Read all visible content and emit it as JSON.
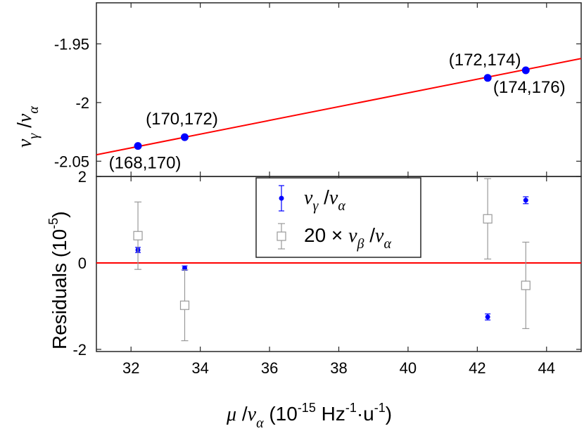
{
  "chart_data": [
    {
      "type": "scatter",
      "panel": "top",
      "xlim": [
        31,
        45
      ],
      "ylim": [
        -2.063,
        -1.915
      ],
      "yticks": [
        "-1.95",
        "-2",
        "-2.05"
      ],
      "ylabel": {
        "main": "ν",
        "sub1": "γ",
        "sep": " /",
        "main2": "ν",
        "sub2": "α"
      },
      "grid": false,
      "fit_line": {
        "color": "#ff0000",
        "x": [
          31,
          45
        ],
        "y": [
          -2.0445,
          -1.9625
        ]
      },
      "points": [
        {
          "x": 32.2,
          "y": -2.037,
          "label": "(168,170)",
          "label_pos": "below"
        },
        {
          "x": 33.55,
          "y": -2.0295,
          "label": "(170,172)",
          "label_pos": "above"
        },
        {
          "x": 42.3,
          "y": -1.979,
          "label": "(172,174)",
          "label_pos": "above"
        },
        {
          "x": 43.4,
          "y": -1.9725,
          "label": "(174,176)",
          "label_pos": "below"
        }
      ],
      "point_color": "#0000ff"
    },
    {
      "type": "scatter",
      "panel": "bottom",
      "xlim": [
        31,
        45
      ],
      "ylim": [
        -2.05,
        2.0
      ],
      "xticks": [
        "32",
        "34",
        "36",
        "38",
        "40",
        "42",
        "44"
      ],
      "yticks": [
        "2",
        "0",
        "-2"
      ],
      "xlabel": {
        "main": "μ",
        "sep": " /",
        "main2": "ν",
        "sub2": "α",
        "units": " (10",
        "exp1": "-15",
        "mid": " Hz",
        "exp2": "-1",
        "dot": "·u",
        "exp3": "-1",
        "close": ")"
      },
      "ylabel": {
        "text": "Residuals (10",
        "exp": "-5",
        "close": ")"
      },
      "zero_line": {
        "color": "#ff0000",
        "y": 0
      },
      "grid": false,
      "legend": {
        "placement": "top-center",
        "entries": [
          {
            "name_main": "ν",
            "name_sub1": "γ",
            "name_sep": " /",
            "name_main2": "ν",
            "name_sub2": "α",
            "color": "#0000ff",
            "marker": "dot"
          },
          {
            "name_prefix": "20 × ",
            "name_main": "ν",
            "name_sub1": "β",
            "name_sep": " /",
            "name_main2": "ν",
            "name_sub2": "α",
            "color": "#999999",
            "marker": "square"
          }
        ]
      },
      "series": [
        {
          "name": "ν_γ/ν_α",
          "color": "#0000ff",
          "marker": "dot",
          "points": [
            {
              "x": 32.2,
              "y": 0.3,
              "err": 0.06
            },
            {
              "x": 33.55,
              "y": -0.12,
              "err": 0.05
            },
            {
              "x": 42.3,
              "y": -1.25,
              "err": 0.07
            },
            {
              "x": 43.4,
              "y": 1.45,
              "err": 0.08
            }
          ]
        },
        {
          "name": "20 × ν_β/ν_α",
          "color": "#999999",
          "marker": "square",
          "points": [
            {
              "x": 32.2,
              "y": 0.63,
              "err": 0.78
            },
            {
              "x": 33.55,
              "y": -0.98,
              "err": 0.82
            },
            {
              "x": 42.3,
              "y": 1.02,
              "err": 0.93
            },
            {
              "x": 43.4,
              "y": -0.52,
              "err": 1.0
            }
          ]
        }
      ]
    }
  ]
}
